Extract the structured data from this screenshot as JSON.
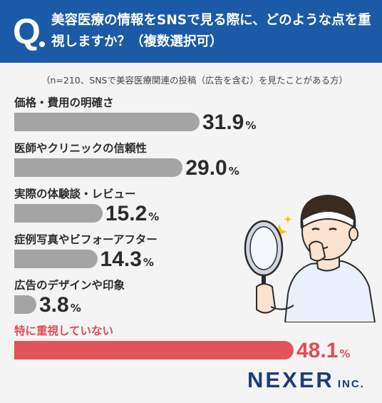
{
  "header": {
    "q_mark": "Q",
    "question": "美容医療の情報をSNSで見る際に、どのような点を重視しますか？（複数選択可）"
  },
  "note": "（n=210、SNSで美容医療関連の投稿（広告を含む）を見たことがある方）",
  "chart_data": {
    "type": "bar",
    "orientation": "horizontal",
    "categories": [
      "価格・費用の明確さ",
      "医師やクリニックの信頼性",
      "実際の体験談・レビュー",
      "症例写真やビフォーアフター",
      "広告のデザインや印象",
      "特に重視していない"
    ],
    "values": [
      31.9,
      29.0,
      15.2,
      14.3,
      3.8,
      48.1
    ],
    "value_labels": [
      "31.9",
      "29.0",
      "15.2",
      "14.3",
      "3.8",
      "48.1"
    ],
    "unit": "%",
    "highlight_index": 5,
    "colors": {
      "bar": "#a4a4a4",
      "highlight": "#e05559",
      "header": "#1b5aa6",
      "logo": "#1c3d7a"
    },
    "xlim": [
      0,
      48.1
    ]
  },
  "logo": {
    "main": "NEXER",
    "sub": "INC."
  }
}
